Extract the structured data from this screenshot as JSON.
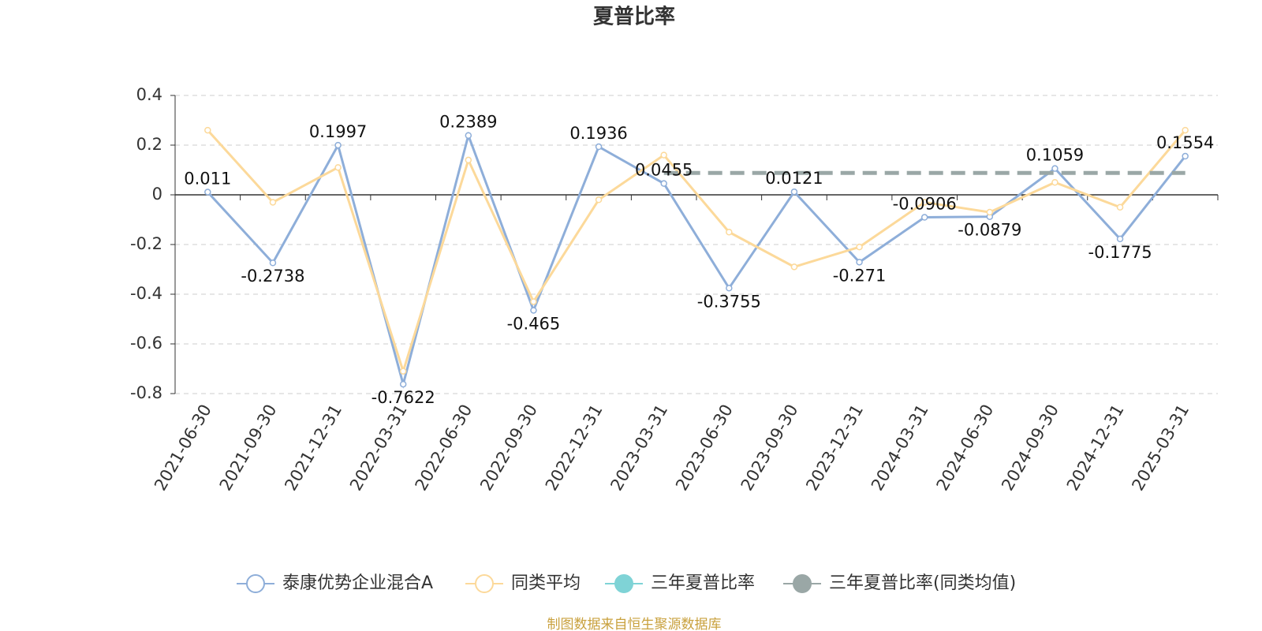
{
  "chart_data": {
    "type": "line",
    "title": "夏普比率",
    "categories": [
      "2021-06-30",
      "2021-09-30",
      "2021-12-31",
      "2022-03-31",
      "2022-06-30",
      "2022-09-30",
      "2022-12-31",
      "2023-03-31",
      "2023-06-30",
      "2023-09-30",
      "2023-12-31",
      "2024-03-31",
      "2024-06-30",
      "2024-09-30",
      "2024-12-31",
      "2025-03-31"
    ],
    "series": [
      {
        "name": "泰康优势企业混合A",
        "color": "#8eaed9",
        "values": [
          0.011,
          -0.2738,
          0.1997,
          -0.7622,
          0.2389,
          -0.465,
          0.1936,
          0.0455,
          -0.3755,
          0.0121,
          -0.271,
          -0.0906,
          -0.0879,
          0.1059,
          -0.1775,
          0.1554
        ]
      },
      {
        "name": "同类平均",
        "color": "#fcd99a",
        "values": [
          0.26,
          -0.03,
          0.11,
          -0.71,
          0.14,
          -0.43,
          -0.02,
          0.16,
          -0.15,
          -0.29,
          -0.21,
          -0.03,
          -0.07,
          0.05,
          -0.05,
          0.26
        ]
      },
      {
        "name": "三年夏普比率",
        "color": "#7fd3d6",
        "values": [
          null,
          null,
          null,
          null,
          null,
          null,
          null,
          null,
          null,
          null,
          null,
          null,
          null,
          null,
          null,
          null
        ]
      },
      {
        "name": "三年夏普比率(同类均值)",
        "color": "#9aa7a6",
        "values": [
          null,
          null,
          null,
          null,
          null,
          null,
          null,
          0.088,
          0.088,
          0.088,
          0.088,
          0.088,
          0.088,
          0.088,
          0.088,
          0.088
        ]
      }
    ],
    "ylim": [
      -0.8,
      0.4
    ],
    "yticks": [
      -0.8,
      -0.6,
      -0.4,
      -0.2,
      0,
      0.2,
      0.4
    ],
    "grid": true,
    "source": "制图数据来自恒生聚源数据库"
  }
}
